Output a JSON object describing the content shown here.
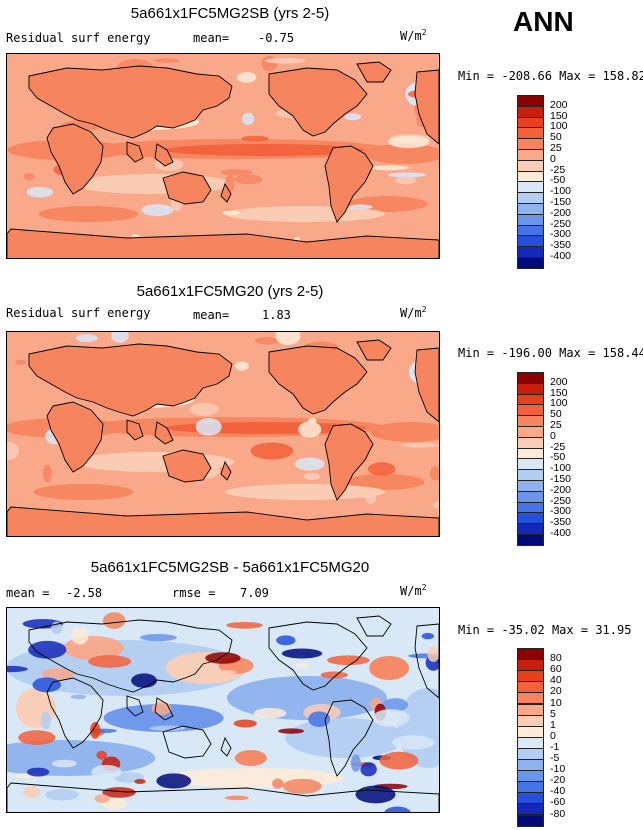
{
  "season": "ANN",
  "units_base": "W/m",
  "units_exp": "2",
  "chart_data": [
    {
      "type": "heatmap",
      "title": "5a661x1FC5MG2SB (yrs 2-5)",
      "variable": "Residual surf energy",
      "mean_label": "mean=",
      "mean": "-0.75",
      "min_label": "Min =",
      "min": "-208.66",
      "max_label": "Max =",
      "max": "158.82",
      "colorbar": [
        "200",
        "150",
        "100",
        "50",
        "25",
        "0",
        "-25",
        "-50",
        "-100",
        "-150",
        "-200",
        "-250",
        "-300",
        "-350",
        "-400"
      ],
      "colors": [
        "#8b0000",
        "#c81e0c",
        "#e8401a",
        "#f2613b",
        "#f6855f",
        "#f9a88a",
        "#fbcdb6",
        "#fdebd8",
        "#d8e8f7",
        "#b3cdf2",
        "#8fb2ee",
        "#6a95ea",
        "#4574e6",
        "#2450db",
        "#1329b8",
        "#000a7a"
      ]
    },
    {
      "type": "heatmap",
      "title": "5a661x1FC5MG20 (yrs 2-5)",
      "variable": "Residual surf energy",
      "mean_label": "mean=",
      "mean": "1.83",
      "min_label": "Min =",
      "min": "-196.00",
      "max_label": "Max =",
      "max": "158.44",
      "colorbar": [
        "200",
        "150",
        "100",
        "50",
        "25",
        "0",
        "-25",
        "-50",
        "-100",
        "-150",
        "-200",
        "-250",
        "-300",
        "-350",
        "-400"
      ],
      "colors": [
        "#8b0000",
        "#c81e0c",
        "#e8401a",
        "#f2613b",
        "#f6855f",
        "#f9a88a",
        "#fbcdb6",
        "#fdebd8",
        "#d8e8f7",
        "#b3cdf2",
        "#8fb2ee",
        "#6a95ea",
        "#4574e6",
        "#2450db",
        "#1329b8",
        "#000a7a"
      ]
    },
    {
      "type": "heatmap",
      "title": "5a661x1FC5MG2SB - 5a661x1FC5MG20",
      "mean_label": "mean =",
      "mean": "-2.58",
      "rmse_label": "rmse =",
      "rmse": "7.09",
      "min_label": "Min =",
      "min": "-35.02",
      "max_label": "Max =",
      "max": "31.95",
      "colorbar": [
        "80",
        "60",
        "40",
        "20",
        "10",
        "5",
        "1",
        "0",
        "-1",
        "-5",
        "-10",
        "-20",
        "-40",
        "-60",
        "-80"
      ],
      "colors": [
        "#8b0000",
        "#c81e0c",
        "#e8401a",
        "#f2613b",
        "#f6855f",
        "#f9a88a",
        "#fbcdb6",
        "#fdebd8",
        "#d8e8f7",
        "#b3cdf2",
        "#8fb2ee",
        "#6a95ea",
        "#4574e6",
        "#2450db",
        "#1329b8",
        "#000a7a"
      ]
    }
  ]
}
